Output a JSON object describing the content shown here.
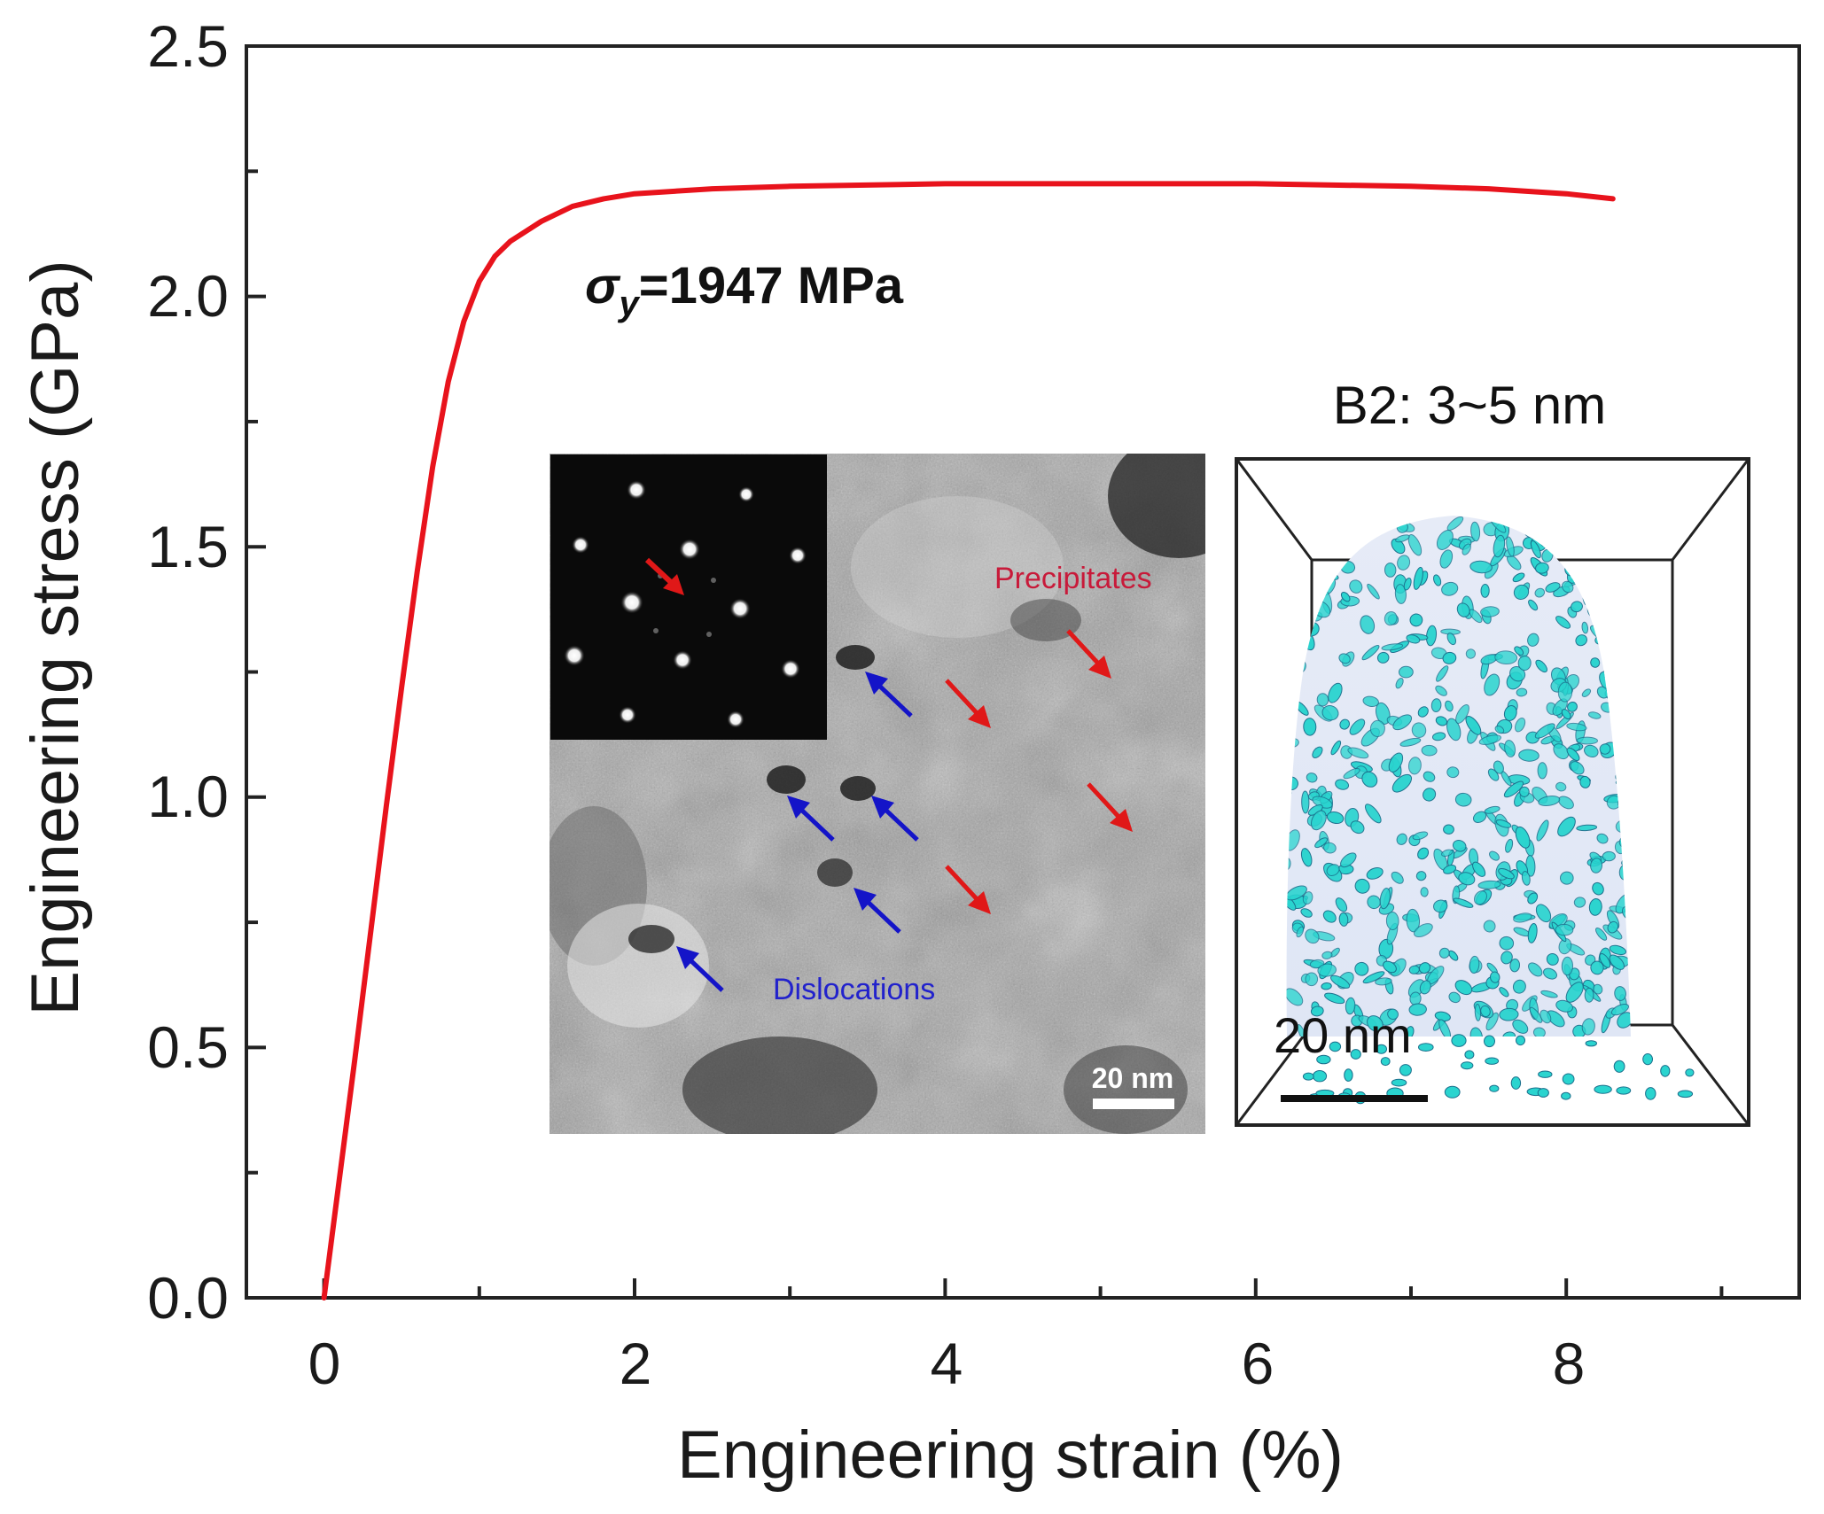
{
  "chart_data": {
    "type": "line",
    "title": "",
    "xlabel": "Engineering strain (%)",
    "ylabel": "Engineering stress (GPa)",
    "xlim": [
      -0.5,
      9.5
    ],
    "ylim": [
      0.0,
      2.5
    ],
    "x_ticks": [
      "0",
      "2",
      "4",
      "6",
      "8"
    ],
    "y_ticks": [
      "0.0",
      "0.5",
      "1.0",
      "1.5",
      "2.0",
      "2.5"
    ],
    "grid": false,
    "series": [
      {
        "name": "stress-strain",
        "color": "#e8131c",
        "x": [
          0.0,
          0.1,
          0.2,
          0.3,
          0.4,
          0.5,
          0.6,
          0.7,
          0.8,
          0.9,
          1.0,
          1.1,
          1.2,
          1.4,
          1.6,
          1.8,
          2.0,
          2.5,
          3.0,
          4.0,
          5.0,
          6.0,
          7.0,
          7.5,
          8.0,
          8.3
        ],
        "y": [
          0.0,
          0.24,
          0.48,
          0.73,
          0.98,
          1.22,
          1.45,
          1.66,
          1.83,
          1.95,
          2.03,
          2.08,
          2.11,
          2.15,
          2.18,
          2.195,
          2.205,
          2.215,
          2.22,
          2.225,
          2.225,
          2.225,
          2.22,
          2.215,
          2.205,
          2.195
        ]
      }
    ],
    "annotations": {
      "yield_symbol": "σ",
      "yield_subscript": "y",
      "yield_value": "=1947 MPa"
    }
  },
  "tem_inset": {
    "precipitates_label": "Precipitates",
    "dislocations_label": "Dislocations",
    "scale_label": "20 nm"
  },
  "apt_inset": {
    "title": "B2: 3~5 nm",
    "scale_label": "20 nm"
  },
  "colors": {
    "curve": "#e8131c",
    "red_arrow": "#e01818",
    "blue_arrow": "#1414c8",
    "precipitate_particles": "#2ad4cf"
  }
}
